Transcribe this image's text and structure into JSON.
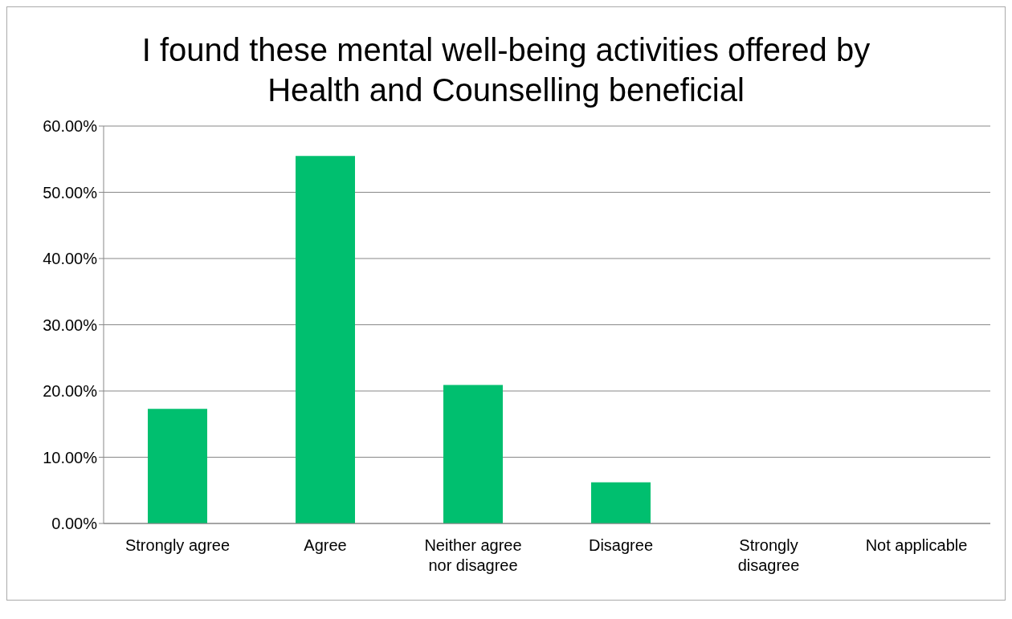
{
  "chart_data": {
    "type": "bar",
    "title": "I found these mental well-being activities offered by Health and Counselling beneficial",
    "categories": [
      "Strongly agree",
      "Agree",
      "Neither agree nor disagree",
      "Disagree",
      "Strongly disagree",
      "Not applicable"
    ],
    "values": [
      17.3,
      55.5,
      20.9,
      6.2,
      0,
      0
    ],
    "color": "#00bf6f",
    "ylim": [
      0,
      60
    ],
    "yticks": [
      {
        "value": 0,
        "label": "0.00%"
      },
      {
        "value": 10,
        "label": "10.00%"
      },
      {
        "value": 20,
        "label": "20.00%"
      },
      {
        "value": 30,
        "label": "30.00%"
      },
      {
        "value": 40,
        "label": "40.00%"
      },
      {
        "value": 50,
        "label": "50.00%"
      },
      {
        "value": 60,
        "label": "60.00%"
      }
    ],
    "grid": "y",
    "legend": false
  }
}
